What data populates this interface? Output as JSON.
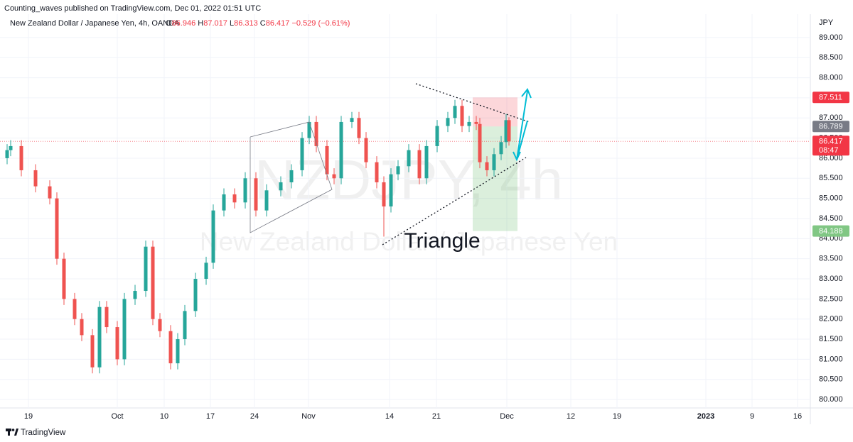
{
  "header": {
    "publisher": "Counting_waves published on TradingView.com, Dec 01, 2022 01:51 UTC"
  },
  "legend": {
    "symbol": "New Zealand Dollar / Japanese Yen, 4h, OANDA",
    "ohlc": [
      {
        "key": "O",
        "value": "86.946"
      },
      {
        "key": "H",
        "value": "87.017"
      },
      {
        "key": "L",
        "value": "86.313"
      },
      {
        "key": "C",
        "value": "86.417"
      }
    ],
    "change": "−0.529 (−0.61%)"
  },
  "footer": {
    "brand": "TradingView"
  },
  "chart_data": {
    "type": "candlestick",
    "currency": "JPY",
    "watermark": {
      "symbol": "NZDJPY, 4h",
      "name": "New Zealand Dollar / Japanese Yen"
    },
    "annotation": "Triangle",
    "up_color": "#26a69a",
    "down_color": "#ef5350",
    "x": [
      10,
      15,
      30,
      50,
      70,
      80,
      90,
      105,
      115,
      130,
      140,
      150,
      165,
      175,
      190,
      205,
      215,
      225,
      240,
      250,
      260,
      275,
      290,
      300,
      315,
      330,
      345,
      360,
      375,
      395,
      410,
      425,
      435,
      445,
      460,
      470,
      480,
      495,
      505,
      515,
      530,
      540,
      550,
      560,
      575,
      590,
      600,
      615,
      630,
      640,
      650,
      660,
      670,
      675,
      685,
      695,
      705,
      712,
      716
    ],
    "open": [
      86.0,
      86.2,
      86.3,
      85.7,
      85.3,
      85.0,
      83.5,
      82.5,
      82.0,
      81.6,
      80.8,
      82.3,
      81.8,
      81.0,
      82.5,
      82.7,
      83.8,
      82.0,
      81.7,
      80.9,
      81.5,
      82.2,
      83.0,
      83.4,
      84.7,
      85.1,
      84.9,
      85.5,
      84.7,
      85.2,
      85.4,
      85.7,
      86.5,
      86.9,
      86.3,
      85.6,
      85.5,
      86.9,
      87.0,
      86.5,
      85.9,
      85.4,
      84.8,
      85.6,
      85.8,
      86.2,
      85.5,
      86.3,
      86.8,
      87.0,
      87.3,
      86.8,
      86.9,
      86.85,
      85.9,
      85.7,
      86.1,
      86.4,
      86.946
    ],
    "high": [
      86.35,
      86.45,
      86.45,
      85.85,
      85.45,
      85.15,
      83.65,
      82.65,
      82.15,
      81.75,
      82.45,
      82.45,
      81.95,
      82.65,
      82.85,
      83.95,
      83.95,
      82.15,
      81.85,
      81.65,
      82.35,
      83.15,
      83.55,
      84.85,
      85.25,
      85.25,
      85.65,
      85.65,
      85.35,
      85.55,
      85.85,
      86.65,
      87.05,
      87.05,
      86.45,
      85.75,
      87.05,
      87.15,
      87.15,
      86.65,
      86.05,
      85.55,
      85.75,
      85.95,
      86.35,
      86.35,
      86.45,
      86.95,
      87.15,
      87.45,
      87.45,
      87.05,
      87.05,
      87.0,
      86.05,
      86.25,
      86.55,
      87.1,
      87.017
    ],
    "low": [
      85.85,
      86.05,
      85.55,
      85.15,
      84.85,
      83.35,
      82.35,
      81.85,
      81.45,
      80.65,
      80.65,
      81.65,
      80.85,
      80.85,
      82.35,
      82.55,
      81.85,
      81.55,
      80.75,
      80.75,
      81.35,
      82.05,
      82.85,
      83.25,
      84.55,
      84.75,
      84.75,
      84.55,
      84.55,
      85.05,
      85.25,
      85.55,
      86.35,
      86.15,
      85.45,
      85.35,
      85.35,
      86.75,
      86.35,
      85.75,
      85.25,
      84.05,
      84.65,
      85.45,
      85.65,
      85.35,
      85.35,
      86.15,
      86.65,
      86.85,
      86.65,
      86.65,
      86.7,
      85.75,
      85.55,
      85.55,
      85.95,
      86.25,
      86.313
    ],
    "close": [
      86.2,
      86.3,
      85.7,
      85.3,
      85.0,
      83.5,
      82.5,
      82.0,
      81.6,
      80.8,
      82.3,
      81.8,
      81.0,
      82.5,
      82.7,
      83.8,
      82.0,
      81.7,
      80.9,
      81.5,
      82.2,
      83.0,
      83.4,
      84.7,
      85.1,
      84.9,
      85.5,
      84.7,
      85.2,
      85.4,
      85.7,
      86.5,
      86.9,
      86.3,
      85.6,
      85.5,
      86.9,
      87.0,
      86.5,
      85.9,
      85.4,
      84.8,
      85.6,
      85.8,
      86.2,
      85.5,
      86.3,
      86.8,
      87.0,
      87.3,
      86.8,
      86.9,
      86.85,
      85.9,
      85.7,
      86.1,
      86.4,
      86.946,
      86.417
    ],
    "xlim": [
      0,
      1140
    ],
    "ylim": [
      79.79,
      89.58
    ],
    "xticks": [
      {
        "value": 40,
        "label": "19"
      },
      {
        "value": 165,
        "label": "Oct"
      },
      {
        "value": 231,
        "label": "10"
      },
      {
        "value": 296,
        "label": "17"
      },
      {
        "value": 358,
        "label": "24"
      },
      {
        "value": 434,
        "label": "Nov"
      },
      {
        "value": 548,
        "label": "14"
      },
      {
        "value": 614,
        "label": "21"
      },
      {
        "value": 713,
        "label": "Dec"
      },
      {
        "value": 803,
        "label": "12"
      },
      {
        "value": 868,
        "label": "19"
      },
      {
        "value": 993,
        "label": "2023"
      },
      {
        "value": 1058,
        "label": "9"
      },
      {
        "value": 1122,
        "label": "16"
      }
    ],
    "yticks": [
      {
        "value": 80,
        "label": "80.000"
      },
      {
        "value": 80.5,
        "label": "80.500"
      },
      {
        "value": 81,
        "label": "81.000"
      },
      {
        "value": 81.5,
        "label": "81.500"
      },
      {
        "value": 82,
        "label": "82.000"
      },
      {
        "value": 82.5,
        "label": "82.500"
      },
      {
        "value": 83,
        "label": "83.000"
      },
      {
        "value": 83.5,
        "label": "83.500"
      },
      {
        "value": 84,
        "label": "84.000"
      },
      {
        "value": 84.5,
        "label": "84.500"
      },
      {
        "value": 85,
        "label": "85.000"
      },
      {
        "value": 85.5,
        "label": "85.500"
      },
      {
        "value": 86,
        "label": "86.000"
      },
      {
        "value": 86.5,
        "label": "86.500"
      },
      {
        "value": 87,
        "label": "87.000"
      },
      {
        "value": 87.5,
        "label": "87.500"
      },
      {
        "value": 88,
        "label": "88.000"
      },
      {
        "value": 88.5,
        "label": "88.500"
      },
      {
        "value": 89,
        "label": "89.000"
      }
    ],
    "price_labels": [
      {
        "value": 87.511,
        "color": "#f23645"
      },
      {
        "value": 86.789,
        "color": "#787b86"
      },
      {
        "value": 86.417,
        "color": "#f23645",
        "countdown": "08:47"
      },
      {
        "value": 84.188,
        "color": "#81c784"
      }
    ]
  }
}
